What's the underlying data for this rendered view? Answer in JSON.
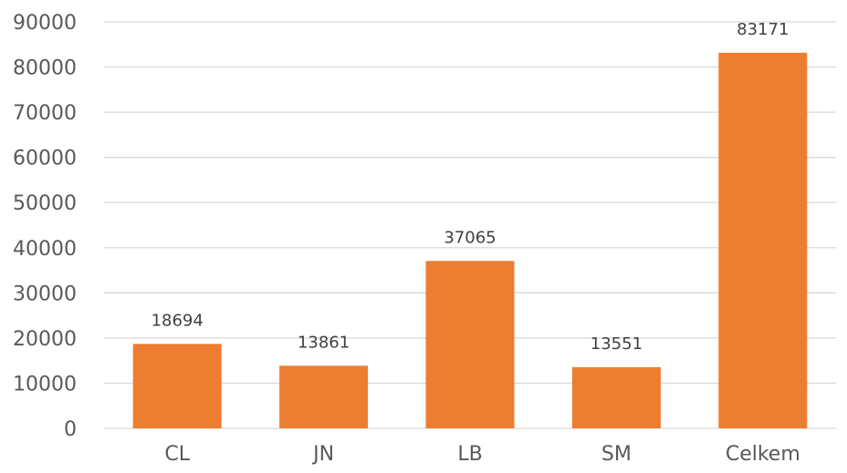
{
  "chart_data": {
    "type": "bar",
    "title": "",
    "xlabel": "",
    "ylabel": "",
    "categories": [
      "CL",
      "JN",
      "LB",
      "SM",
      "Celkem"
    ],
    "values": [
      18694,
      13861,
      37065,
      13551,
      83171
    ],
    "data_labels": [
      "18694",
      "13861",
      "37065",
      "13551",
      "83171"
    ],
    "ylim": [
      0,
      90000
    ],
    "yticks": [
      0,
      10000,
      20000,
      30000,
      40000,
      50000,
      60000,
      70000,
      80000,
      90000
    ],
    "ytick_labels": [
      "0",
      "10000",
      "20000",
      "30000",
      "40000",
      "50000",
      "60000",
      "70000",
      "80000",
      "90000"
    ],
    "grid": true,
    "legend": "none",
    "bar_color": "#ed7d31",
    "grid_color": "#d9d9d9"
  }
}
